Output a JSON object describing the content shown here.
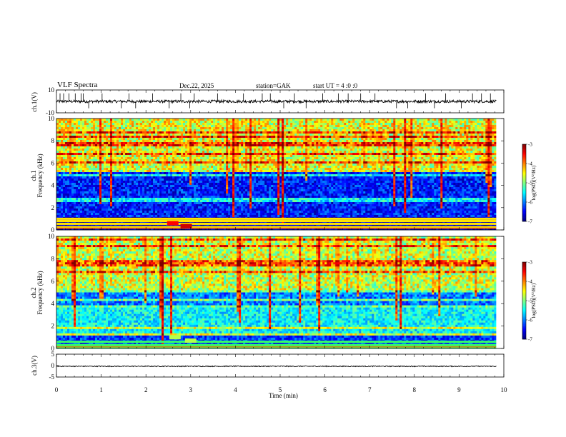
{
  "header": {
    "title": "VLF  Spectra",
    "date": "Dec.22, 2025",
    "station": "station=GAK",
    "start": "start  UT =   4  :0  :0"
  },
  "chart_data": [
    {
      "type": "line",
      "panel": "ch1-waveform",
      "ylabel": "ch.1(V)",
      "ylim": [
        -10,
        10
      ],
      "yticks": [
        "10",
        "-10"
      ],
      "xlim": [
        0,
        10
      ],
      "baseline": 0,
      "noise_amplitude": 1.2,
      "spike_times": [
        0.08,
        0.16,
        0.28,
        0.42,
        0.55,
        0.6,
        0.72,
        1.02,
        1.45,
        1.62,
        1.77,
        2.15,
        2.52,
        2.78,
        2.98,
        3.08,
        3.6,
        4.18,
        4.6,
        4.78,
        5.08,
        5.32,
        5.58,
        5.95,
        6.3,
        6.52,
        6.8,
        7.12,
        7.6,
        7.85,
        8.25,
        8.45,
        8.7,
        9.05,
        9.3,
        9.5,
        9.7
      ]
    },
    {
      "type": "heatmap",
      "panel": "ch1-spectrogram",
      "ylabel": "ch.1",
      "ylabel2": "Frequency  (kHz)",
      "xlim": [
        0,
        9.83
      ],
      "ylim": [
        0,
        10
      ],
      "yticks": [
        0,
        2,
        4,
        6,
        8,
        10
      ],
      "colorbar": {
        "label": "log(PSD)(V²/Hz)",
        "range": [
          -7,
          -3
        ],
        "ticks": [
          "-3",
          "-4",
          "-5",
          "-6",
          "-7"
        ]
      },
      "high_band_level": -4.6,
      "mid_band_level": -6.4,
      "low_band_level": -6.7,
      "strong_line_kHz": [
        0.25,
        0.55,
        0.8,
        1.0
      ],
      "hot_spots": [
        {
          "t": 2.6,
          "f": 0.6,
          "level": -3.5
        },
        {
          "t": 2.9,
          "f": 0.35,
          "level": -3.3
        }
      ]
    },
    {
      "type": "heatmap",
      "panel": "ch2-spectrogram",
      "ylabel": "ch.2",
      "ylabel2": "Frequency  (kHz)",
      "xlim": [
        0,
        9.83
      ],
      "ylim": [
        0,
        10
      ],
      "yticks": [
        0,
        2,
        4,
        6,
        8,
        10
      ],
      "colorbar": {
        "label": "log(PSD)(V²/Hz)",
        "range": [
          -7,
          -3
        ],
        "ticks": [
          "-3",
          "-4",
          "-5",
          "-6",
          "-7"
        ]
      },
      "high_band_level": -4.7,
      "mid_band_level": -6.0,
      "low_band_level": -6.3,
      "strong_line_kHz": [
        0.1,
        0.3,
        0.6
      ],
      "hot_spots": [
        {
          "t": 2.65,
          "f": 1.0,
          "level": -4.8
        },
        {
          "t": 3.0,
          "f": 0.7,
          "level": -4.8
        }
      ]
    },
    {
      "type": "line",
      "panel": "ch3-waveform",
      "ylabel": "ch.3(V)",
      "ylim": [
        -5,
        5
      ],
      "yticks": [
        "5",
        "0",
        "-5"
      ],
      "xlim": [
        0,
        10
      ],
      "baseline": -0.3,
      "noise_amplitude": 0.2,
      "xlabel": "Time  (min)",
      "xticks": [
        "0",
        "1",
        "2",
        "3",
        "4",
        "5",
        "6",
        "7",
        "8",
        "9",
        "10"
      ]
    }
  ]
}
